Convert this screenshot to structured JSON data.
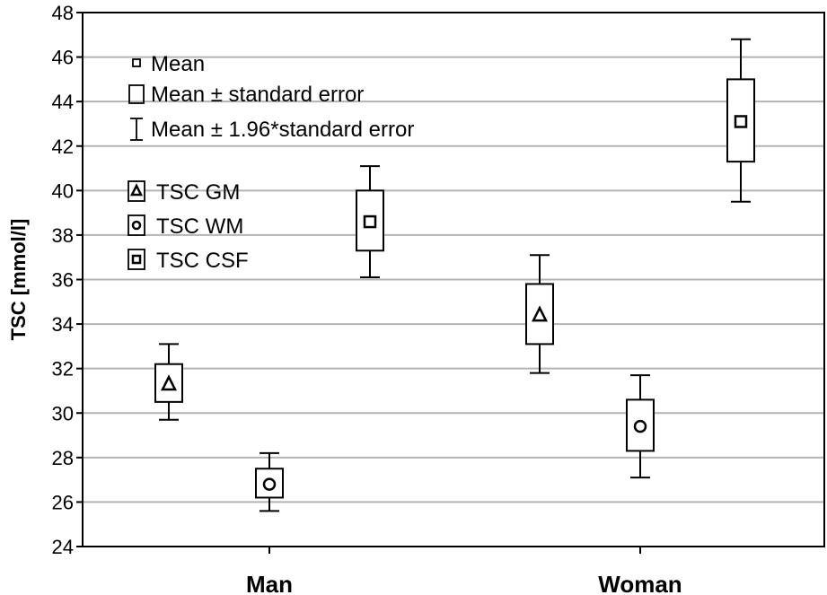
{
  "chart_data": {
    "type": "box",
    "ylabel": "TSC [mmol/l]",
    "ylim": [
      24,
      48
    ],
    "yticks": [
      24,
      26,
      28,
      30,
      32,
      34,
      36,
      38,
      40,
      42,
      44,
      46,
      48
    ],
    "categories": [
      "Man",
      "Woman"
    ],
    "grid": "horizontal",
    "stat_legend": {
      "mean": "Mean",
      "se": "Mean ± standard error",
      "ci": "Mean ± 1.96*standard error"
    },
    "series": [
      {
        "name": "TSC GM",
        "marker": "triangle",
        "mean": [
          31.3,
          34.4
        ],
        "se_low": [
          30.5,
          33.1
        ],
        "se_high": [
          32.2,
          35.8
        ],
        "ci_low": [
          29.7,
          31.8
        ],
        "ci_high": [
          33.1,
          37.1
        ]
      },
      {
        "name": "TSC WM",
        "marker": "circle",
        "mean": [
          26.8,
          29.4
        ],
        "se_low": [
          26.2,
          28.3
        ],
        "se_high": [
          27.5,
          30.6
        ],
        "ci_low": [
          25.6,
          27.1
        ],
        "ci_high": [
          28.2,
          31.7
        ]
      },
      {
        "name": "TSC CSF",
        "marker": "square",
        "mean": [
          38.6,
          43.1
        ],
        "se_low": [
          37.3,
          41.3
        ],
        "se_high": [
          40.0,
          45.0
        ],
        "ci_low": [
          36.1,
          39.5
        ],
        "ci_high": [
          41.1,
          46.8
        ]
      }
    ]
  }
}
